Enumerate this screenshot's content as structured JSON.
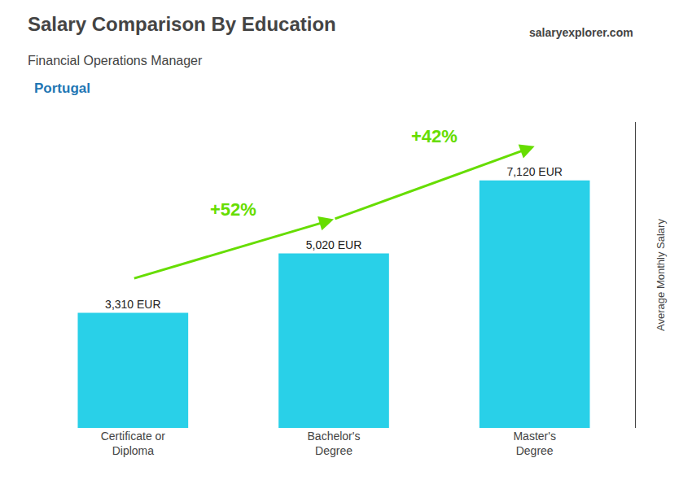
{
  "chart_data": {
    "type": "bar",
    "title": "Salary Comparison By Education",
    "subtitle": "Financial Operations Manager",
    "categories": [
      "Certificate or\nDiploma",
      "Bachelor's\nDegree",
      "Master's\nDegree"
    ],
    "values": [
      3310,
      5020,
      7120
    ],
    "value_labels": [
      "3,310 EUR",
      "5,020 EUR",
      "7,120 EUR"
    ],
    "data_labels": true,
    "color": "#29d0e8",
    "ylabel": "Average Monthly Salary",
    "ylim": [
      0,
      8800
    ],
    "yticks": [],
    "tick_labels": "x",
    "grid": false,
    "annotations": [
      {
        "text": "+52%",
        "from": "Certificate or\nDiploma",
        "to": "Bachelor's\nDegree",
        "color": "#66dd00"
      },
      {
        "text": "+42%",
        "from": "Bachelor's\nDegree",
        "to": "Master's\nDegree",
        "color": "#66dd00"
      },
      {
        "text": "Portugal"
      },
      {
        "text": "salaryexplorer.com"
      }
    ]
  }
}
